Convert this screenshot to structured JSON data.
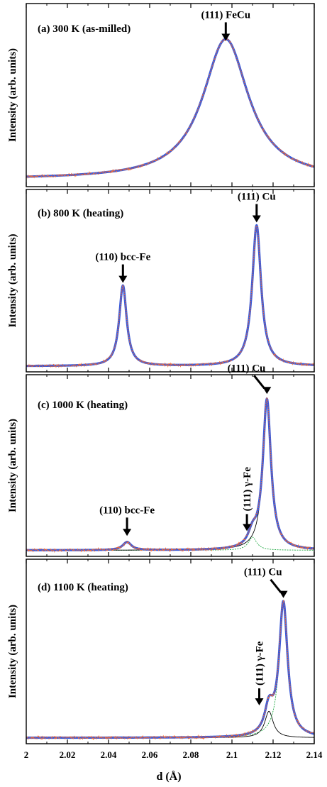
{
  "chart_data": {
    "type": "line",
    "xlabel": "d (Å)",
    "ylabel": "Intensity (arb. units)",
    "xlim": [
      2.0,
      2.14
    ],
    "xticks": [
      2,
      2.02,
      2.04,
      2.06,
      2.08,
      2.1,
      2.12,
      2.14
    ],
    "xtick_labels": [
      "2",
      "2.02",
      "2.04",
      "2.06",
      "2.08",
      "2.1",
      "2.12",
      "2.14"
    ],
    "colors": {
      "fit": "#3a5bd9",
      "data": "#ff6a2a",
      "component": "#000000",
      "component_alt": "#22aa44"
    },
    "panels": [
      {
        "label": "(a)  300 K (as-milled)",
        "ylim": [
          0,
          1.18
        ],
        "baseline": 0.03,
        "slope": 0.0,
        "peaks": [
          {
            "center": 2.097,
            "amplitude": 0.94,
            "width": 0.0135
          }
        ],
        "components": [],
        "annotations": [
          {
            "text": "(111) FeCu",
            "x": 2.097,
            "y": 0.94,
            "rotate": false
          }
        ]
      },
      {
        "label": "(b)  800 K (heating)",
        "ylim": [
          0,
          1.22
        ],
        "baseline": 0.02,
        "slope": 0.0,
        "peaks": [
          {
            "center": 2.047,
            "amplitude": 0.56,
            "width": 0.0022
          },
          {
            "center": 2.112,
            "amplitude": 0.98,
            "width": 0.0026
          }
        ],
        "components": [],
        "annotations": [
          {
            "text": "(110) bcc-Fe",
            "x": 2.047,
            "y": 0.58,
            "rotate": false
          },
          {
            "text": "(111) Cu",
            "x": 2.112,
            "y": 1.0,
            "rotate": false
          }
        ]
      },
      {
        "label": "(c)  1000 K (heating)",
        "ylim": [
          0,
          1.07
        ],
        "baseline": 0.02,
        "slope": 0.0,
        "peaks": [
          {
            "center": 2.049,
            "amplitude": 0.05,
            "width": 0.0025
          },
          {
            "center": 2.11,
            "amplitude": 0.08,
            "width": 0.0025
          },
          {
            "center": 2.117,
            "amplitude": 0.92,
            "width": 0.0024
          }
        ],
        "components": [
          {
            "center": 2.11,
            "amplitude": 0.08,
            "width": 0.0025,
            "style": "alt"
          },
          {
            "center": 2.117,
            "amplitude": 0.92,
            "width": 0.0024,
            "style": "main"
          }
        ],
        "annotations": [
          {
            "text": "(110) bcc-Fe",
            "x": 2.049,
            "y": 0.09,
            "rotate": false
          },
          {
            "text": "(111) Cu",
            "x": 2.117,
            "y": 0.96,
            "rotate": false
          },
          {
            "text": "(111) γ-Fe",
            "x": 2.109,
            "y": 0.12,
            "rotate": true
          }
        ]
      },
      {
        "label": "(d)  1100 K (heating)",
        "ylim": [
          0,
          1.14
        ],
        "baseline": 0.02,
        "slope": 0.0,
        "peaks": [
          {
            "center": 2.118,
            "amplitude": 0.17,
            "width": 0.0025
          },
          {
            "center": 2.125,
            "amplitude": 0.86,
            "width": 0.0025
          }
        ],
        "components": [
          {
            "center": 2.118,
            "amplitude": 0.17,
            "width": 0.0025,
            "style": "main"
          },
          {
            "center": 2.125,
            "amplitude": 0.86,
            "width": 0.0025,
            "style": "alt"
          }
        ],
        "annotations": [
          {
            "text": "(111) Cu",
            "x": 2.125,
            "y": 0.9,
            "rotate": false
          },
          {
            "text": "(111) γ-Fe",
            "x": 2.115,
            "y": 0.21,
            "rotate": true
          }
        ]
      }
    ]
  }
}
